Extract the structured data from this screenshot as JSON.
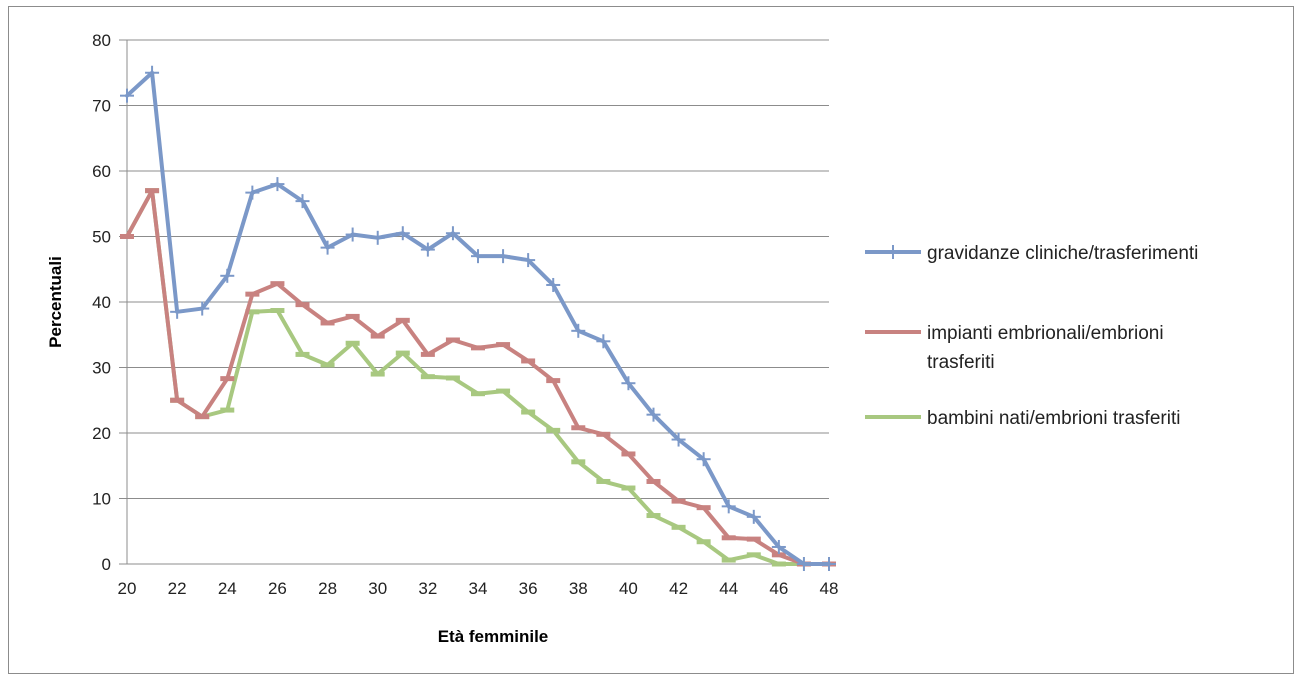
{
  "chart_data": {
    "type": "line",
    "title": "",
    "xlabel": "Età femminile",
    "ylabel": "Percentuali",
    "xlim": [
      20,
      48
    ],
    "ylim": [
      0,
      80
    ],
    "xticks": [
      "20",
      "22",
      "24",
      "26",
      "28",
      "30",
      "32",
      "34",
      "36",
      "38",
      "40",
      "42",
      "44",
      "46",
      "48"
    ],
    "yticks": [
      "0",
      "10",
      "20",
      "30",
      "40",
      "50",
      "60",
      "70",
      "80"
    ],
    "grid": "horizontal",
    "legend_position": "right",
    "x": [
      20,
      21,
      22,
      23,
      24,
      25,
      26,
      27,
      28,
      29,
      30,
      31,
      32,
      33,
      34,
      35,
      36,
      37,
      38,
      39,
      40,
      41,
      42,
      43,
      44,
      45,
      46,
      47,
      48
    ],
    "series": [
      {
        "name": "gravidanze cliniche/trasferimenti",
        "color": "#7b98c8",
        "marker": "plus",
        "values": [
          71.5,
          75,
          38.5,
          39,
          44,
          56.7,
          58,
          55.4,
          48.3,
          50.3,
          49.8,
          50.5,
          48,
          50.5,
          47,
          47,
          46.4,
          42.6,
          35.6,
          34,
          27.6,
          22.8,
          19,
          16,
          8.8,
          7.2,
          2.6,
          0,
          0
        ]
      },
      {
        "name": "impianti embrionali/embrioni trasferiti",
        "color": "#c88280",
        "marker": "dash",
        "values": [
          50,
          57,
          25,
          22.5,
          28.3,
          41.2,
          42.8,
          39.6,
          36.8,
          37.8,
          34.8,
          37.2,
          32,
          34.2,
          33,
          33.5,
          31,
          28,
          20.8,
          19.8,
          16.8,
          12.6,
          9.6,
          8.6,
          4,
          3.8,
          1.4,
          0,
          0
        ]
      },
      {
        "name": "bambini nati/embrioni trasferiti",
        "color": "#a8c880",
        "marker": "dash",
        "values": [
          50,
          57,
          25,
          22.5,
          23.5,
          38.5,
          38.7,
          32,
          30.4,
          33.7,
          29,
          32.2,
          28.6,
          28.4,
          26,
          26.4,
          23.2,
          20.4,
          15.6,
          12.6,
          11.6,
          7.4,
          5.6,
          3.4,
          0.6,
          1.4,
          0,
          0,
          0
        ]
      }
    ]
  }
}
